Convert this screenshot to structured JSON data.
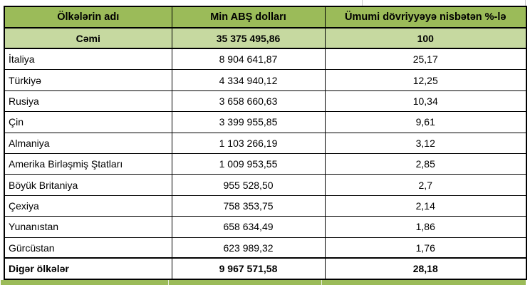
{
  "chart_data": {
    "type": "table",
    "title": "",
    "columns": [
      "Ölkələrin adı",
      "Min ABŞ dolları",
      "Ümumi dövriyyəyə nisbətən %-lə"
    ],
    "rows": [
      {
        "name": "Cəmi",
        "value": "35 375 495,86",
        "percent": "100",
        "emphasis": "total"
      },
      {
        "name": "İtaliya",
        "value": "8 904 641,87",
        "percent": "25,17",
        "emphasis": "none"
      },
      {
        "name": "Türkiyə",
        "value": "4 334 940,12",
        "percent": "12,25",
        "emphasis": "none"
      },
      {
        "name": "Rusiya",
        "value": "3 658 660,63",
        "percent": "10,34",
        "emphasis": "none"
      },
      {
        "name": "Çin",
        "value": "3 399 955,85",
        "percent": "9,61",
        "emphasis": "none"
      },
      {
        "name": "Almaniya",
        "value": "1 103 266,19",
        "percent": "3,12",
        "emphasis": "none"
      },
      {
        "name": "Amerika Birləşmiş Ştatları",
        "value": "1 009 953,55",
        "percent": "2,85",
        "emphasis": "none"
      },
      {
        "name": "Böyük Britaniya",
        "value": "955 528,50",
        "percent": "2,7",
        "emphasis": "none"
      },
      {
        "name": "Çexiya",
        "value": "758 353,75",
        "percent": "2,14",
        "emphasis": "none"
      },
      {
        "name": "Yunanıstan",
        "value": "658 634,49",
        "percent": "1,86",
        "emphasis": "none"
      },
      {
        "name": "Gürcüstan",
        "value": "623 989,32",
        "percent": "1,76",
        "emphasis": "none"
      },
      {
        "name": "Digər ölkələr",
        "value": "9 967 571,58",
        "percent": "28,18",
        "emphasis": "bold"
      }
    ]
  },
  "colors": {
    "header_green": "#9BBB59",
    "light_green": "#C6D9A0",
    "border": "#000000",
    "gridline": "#C9C9C9"
  }
}
